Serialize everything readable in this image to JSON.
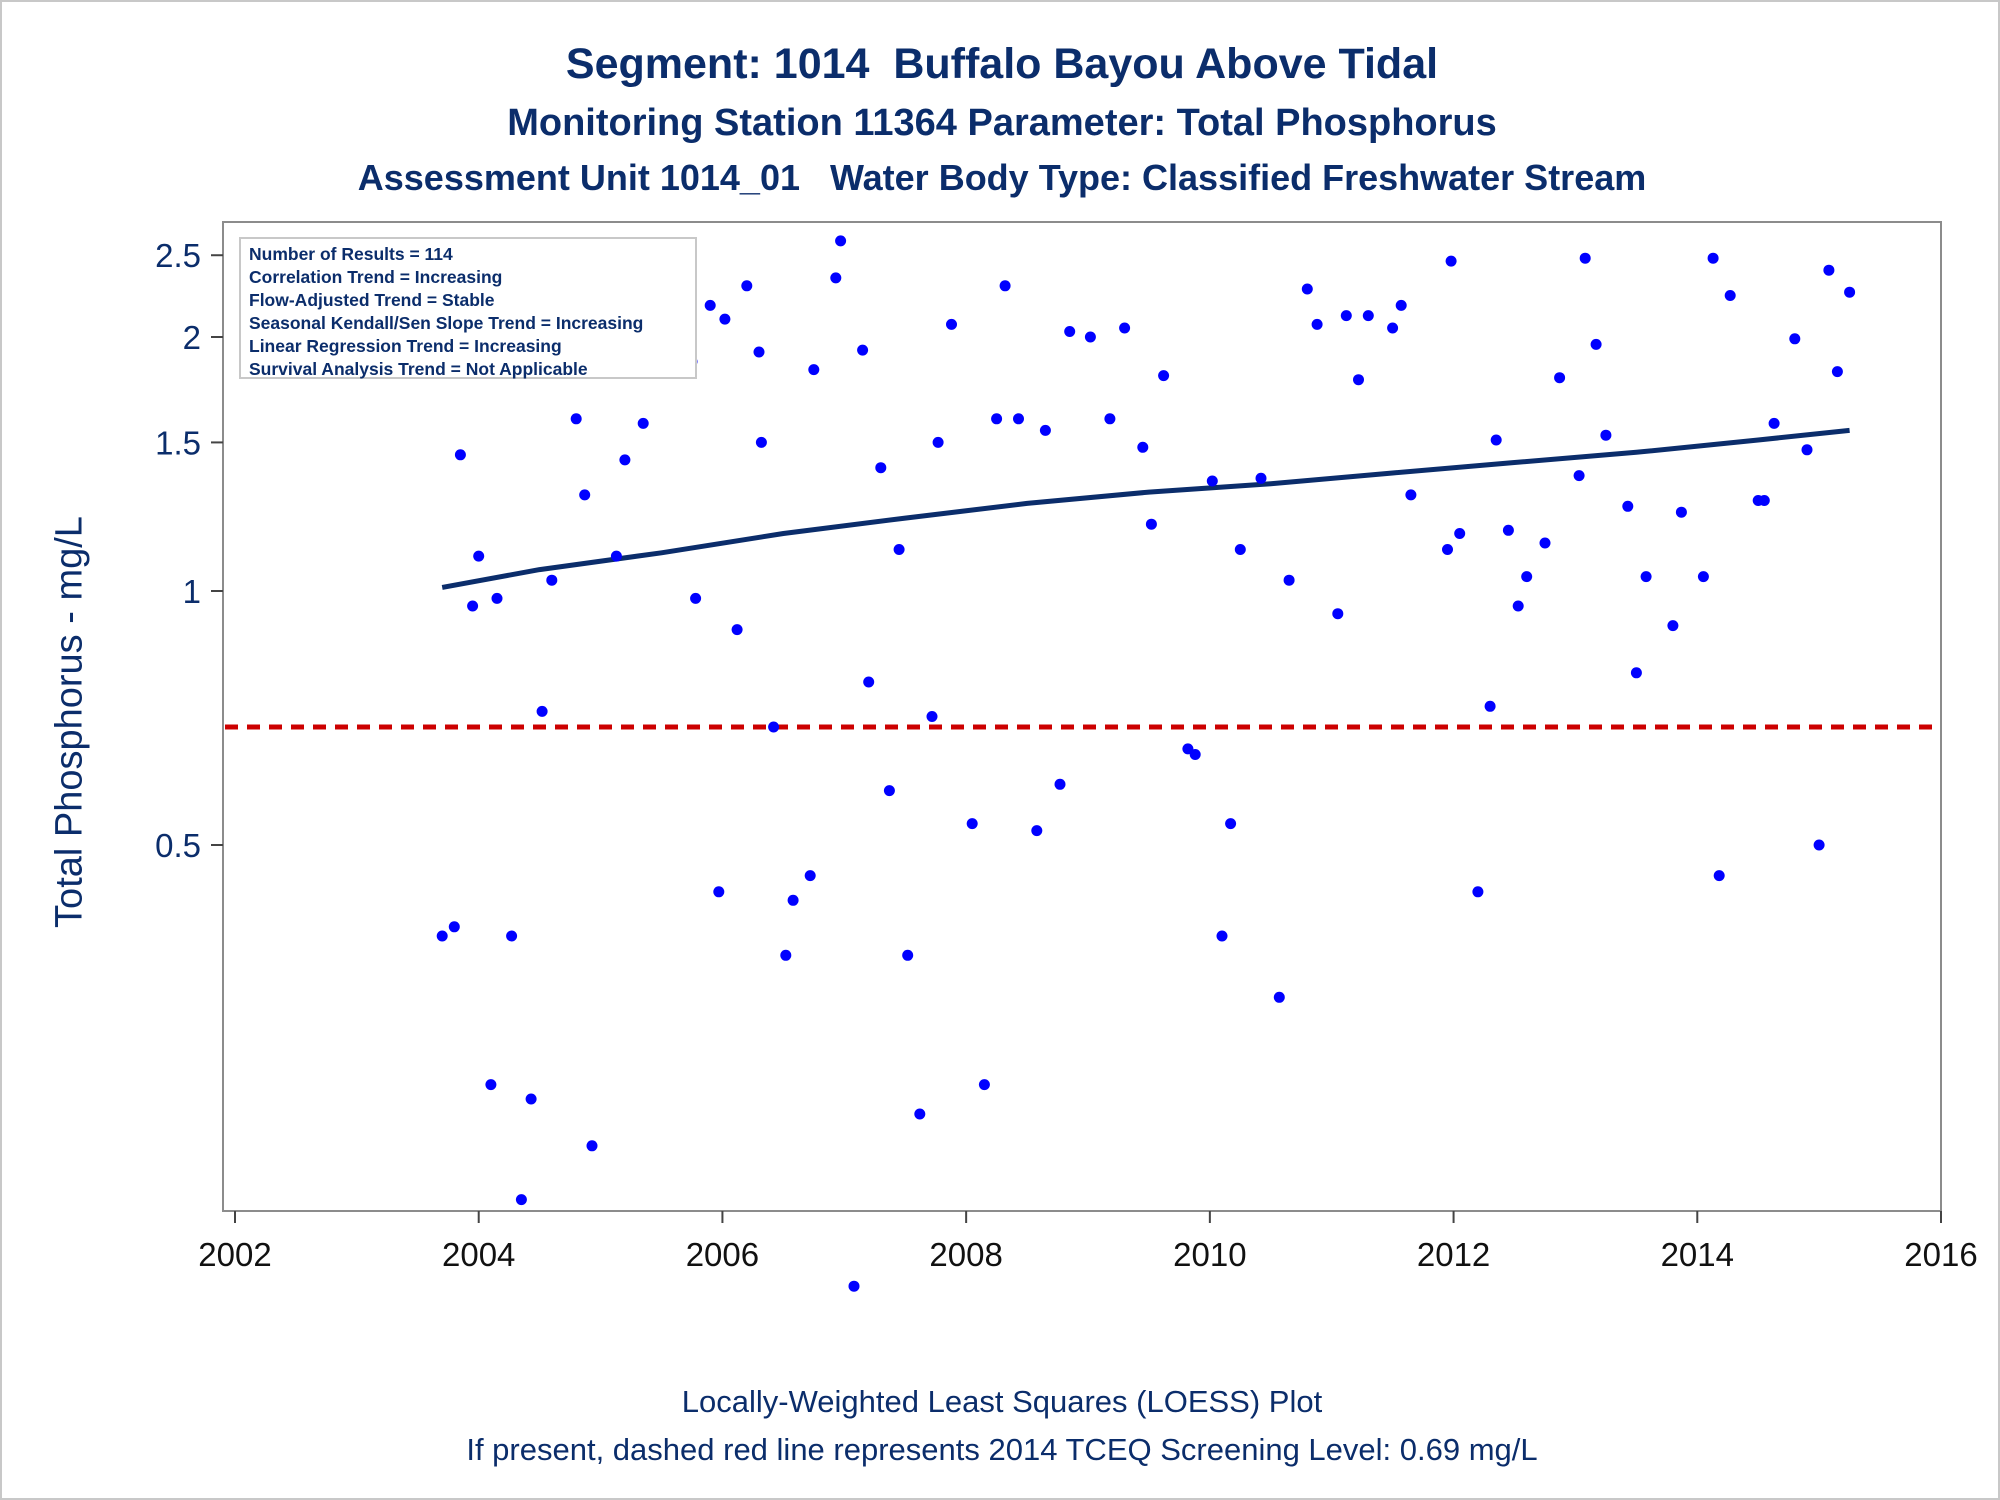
{
  "title": {
    "line1": "Segment: 1014  Buffalo Bayou Above Tidal",
    "line2": "Monitoring Station 11364 Parameter: Total Phosphorus",
    "line3": "Assessment Unit 1014_01   Water Body Type: Classified Freshwater Stream"
  },
  "footer": {
    "line1": "Locally-Weighted Least Squares (LOESS) Plot",
    "line2": "If present, dashed red line represents 2014 TCEQ Screening Level: 0.69 mg/L"
  },
  "info_box": [
    "Number of Results = 114",
    "Correlation Trend = Increasing",
    "Flow-Adjusted Trend = Stable",
    "Seasonal Kendall/Sen Slope Trend = Increasing",
    "Linear Regression Trend = Increasing",
    "Survival Analysis Trend = Not Applicable"
  ],
  "chart_data": {
    "type": "scatter",
    "ylabel": "Total Phosphorus - mg/L",
    "y_scale": "log",
    "xlim": [
      2002,
      2016
    ],
    "ylim": [
      0.15,
      2.6
    ],
    "x_ticks": [
      2002,
      2004,
      2006,
      2008,
      2010,
      2012,
      2014,
      2016
    ],
    "y_ticks": [
      0.5,
      1,
      1.5,
      2,
      2.5
    ],
    "y_tick_labels": [
      "0.5",
      "1",
      "1.5",
      "2",
      "2.5"
    ],
    "grid": false,
    "screening_level": 0.69,
    "colors": {
      "points": "#0000ff",
      "loess": "#0b2d6b",
      "screening": "#cc0000",
      "text": "#0b2d6b"
    },
    "points": [
      [
        2003.7,
        0.39
      ],
      [
        2003.8,
        0.4
      ],
      [
        2003.85,
        1.45
      ],
      [
        2003.95,
        0.96
      ],
      [
        2004.0,
        1.1
      ],
      [
        2004.1,
        0.26
      ],
      [
        2004.15,
        0.98
      ],
      [
        2004.27,
        0.39
      ],
      [
        2004.35,
        0.19
      ],
      [
        2004.43,
        0.25
      ],
      [
        2004.52,
        0.72
      ],
      [
        2004.6,
        1.03
      ],
      [
        2004.75,
        1.87
      ],
      [
        2004.8,
        1.6
      ],
      [
        2004.87,
        1.3
      ],
      [
        2004.93,
        0.22
      ],
      [
        2005.02,
        1.98
      ],
      [
        2005.13,
        1.1
      ],
      [
        2005.2,
        1.43
      ],
      [
        2005.32,
        2.0
      ],
      [
        2005.35,
        1.58
      ],
      [
        2005.75,
        1.87
      ],
      [
        2005.78,
        0.98
      ],
      [
        2005.9,
        2.18
      ],
      [
        2005.97,
        0.44
      ],
      [
        2006.02,
        2.1
      ],
      [
        2006.12,
        0.9
      ],
      [
        2006.2,
        2.3
      ],
      [
        2006.3,
        1.92
      ],
      [
        2006.32,
        1.5
      ],
      [
        2006.42,
        0.69
      ],
      [
        2006.52,
        0.37
      ],
      [
        2006.58,
        0.43
      ],
      [
        2006.72,
        0.46
      ],
      [
        2006.75,
        1.83
      ],
      [
        2006.93,
        2.35
      ],
      [
        2006.97,
        2.6
      ],
      [
        2007.08,
        0.15
      ],
      [
        2007.15,
        1.93
      ],
      [
        2007.2,
        0.78
      ],
      [
        2007.3,
        1.4
      ],
      [
        2007.37,
        0.58
      ],
      [
        2007.45,
        1.12
      ],
      [
        2007.52,
        0.37
      ],
      [
        2007.62,
        0.24
      ],
      [
        2007.72,
        0.71
      ],
      [
        2007.77,
        1.5
      ],
      [
        2007.88,
        2.07
      ],
      [
        2008.05,
        0.53
      ],
      [
        2008.15,
        0.26
      ],
      [
        2008.25,
        1.6
      ],
      [
        2008.32,
        2.3
      ],
      [
        2008.43,
        1.6
      ],
      [
        2008.58,
        0.52
      ],
      [
        2008.65,
        1.55
      ],
      [
        2008.77,
        0.59
      ],
      [
        2008.85,
        2.03
      ],
      [
        2009.02,
        2.0
      ],
      [
        2009.18,
        1.6
      ],
      [
        2009.3,
        2.05
      ],
      [
        2009.45,
        1.48
      ],
      [
        2009.52,
        1.2
      ],
      [
        2009.62,
        1.8
      ],
      [
        2009.82,
        0.65
      ],
      [
        2009.88,
        0.64
      ],
      [
        2010.02,
        1.35
      ],
      [
        2010.1,
        0.39
      ],
      [
        2010.17,
        0.53
      ],
      [
        2010.25,
        1.12
      ],
      [
        2010.42,
        1.36
      ],
      [
        2010.57,
        0.33
      ],
      [
        2010.65,
        1.03
      ],
      [
        2010.8,
        2.28
      ],
      [
        2010.88,
        2.07
      ],
      [
        2011.05,
        0.94
      ],
      [
        2011.12,
        2.12
      ],
      [
        2011.22,
        1.78
      ],
      [
        2011.3,
        2.12
      ],
      [
        2011.5,
        2.05
      ],
      [
        2011.57,
        2.18
      ],
      [
        2011.65,
        1.3
      ],
      [
        2011.95,
        1.12
      ],
      [
        2011.98,
        2.46
      ],
      [
        2012.05,
        1.17
      ],
      [
        2012.2,
        0.44
      ],
      [
        2012.3,
        0.73
      ],
      [
        2012.35,
        1.51
      ],
      [
        2012.45,
        1.18
      ],
      [
        2012.53,
        0.96
      ],
      [
        2012.6,
        1.04
      ],
      [
        2012.75,
        1.14
      ],
      [
        2012.87,
        1.79
      ],
      [
        2013.03,
        1.37
      ],
      [
        2013.08,
        2.48
      ],
      [
        2013.17,
        1.96
      ],
      [
        2013.25,
        1.53
      ],
      [
        2013.43,
        1.26
      ],
      [
        2013.5,
        0.8
      ],
      [
        2013.58,
        1.04
      ],
      [
        2013.8,
        0.91
      ],
      [
        2013.87,
        1.24
      ],
      [
        2014.05,
        1.04
      ],
      [
        2014.13,
        2.48
      ],
      [
        2014.18,
        0.46
      ],
      [
        2014.27,
        2.24
      ],
      [
        2014.5,
        1.28
      ],
      [
        2014.55,
        1.28
      ],
      [
        2014.63,
        1.58
      ],
      [
        2014.8,
        1.99
      ],
      [
        2014.9,
        1.47
      ],
      [
        2015.0,
        0.5
      ],
      [
        2015.08,
        2.4
      ],
      [
        2015.15,
        1.82
      ],
      [
        2015.25,
        2.26
      ]
    ],
    "loess_line": [
      [
        2003.7,
        1.01
      ],
      [
        2004.5,
        1.06
      ],
      [
        2005.5,
        1.11
      ],
      [
        2006.5,
        1.17
      ],
      [
        2007.5,
        1.22
      ],
      [
        2008.5,
        1.27
      ],
      [
        2009.5,
        1.31
      ],
      [
        2010.5,
        1.34
      ],
      [
        2011.5,
        1.38
      ],
      [
        2012.5,
        1.42
      ],
      [
        2013.5,
        1.46
      ],
      [
        2014.5,
        1.51
      ],
      [
        2015.25,
        1.55
      ]
    ]
  }
}
